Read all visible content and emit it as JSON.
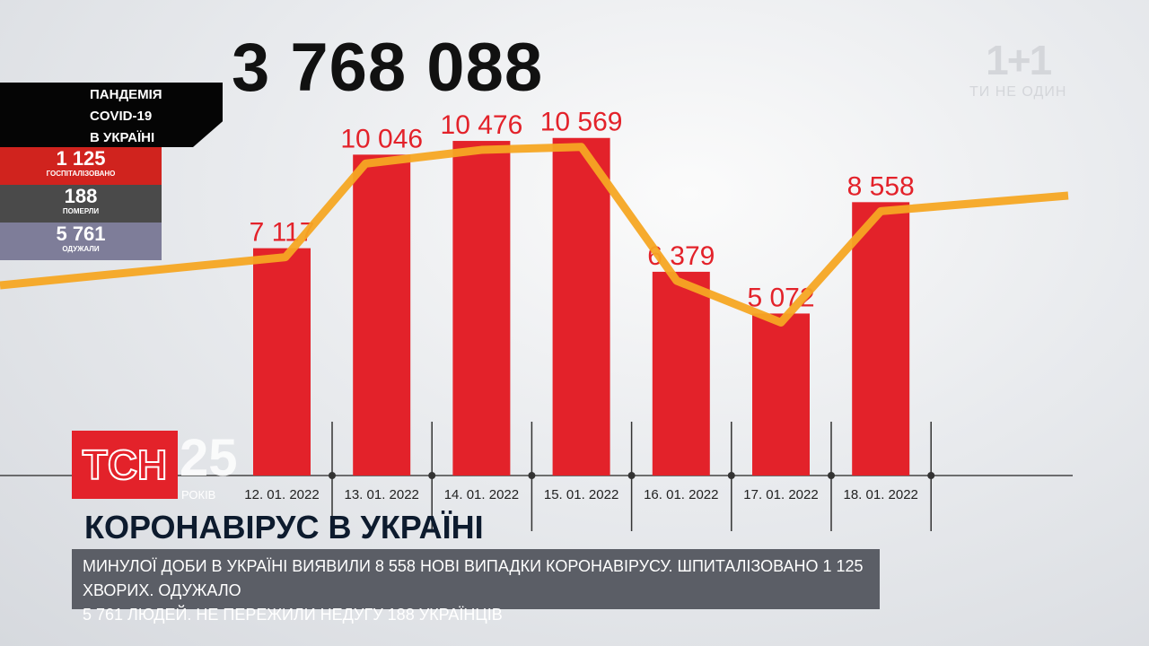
{
  "total_cases": "3 768 088",
  "brand": {
    "logo": "1+1",
    "tagline": "ТИ НЕ ОДИН"
  },
  "panel": {
    "title_lines": [
      "ПАНДЕМІЯ",
      "COVID-19",
      "В УКРАЇНІ"
    ],
    "stats": [
      {
        "value": "1 125",
        "label": "госпіталізовано",
        "color": "#d0231e"
      },
      {
        "value": "188",
        "label": "померли",
        "color": "#4a4a4a"
      },
      {
        "value": "5 761",
        "label": "одужали",
        "color": "#7e7d99"
      }
    ]
  },
  "channel": {
    "logo": "ТСН",
    "anniversary": "25",
    "anniversary_label": "РОКІВ"
  },
  "headline": "КОРОНАВІРУС В УКРАЇНІ",
  "ticker": [
    "МИНУЛОЇ ДОБИ В УКРАЇНІ ВИЯВИЛИ 8 558 НОВІ ВИПАДКИ КОРОНАВІРУСУ. ШПИТАЛІЗОВАНО 1 125 ХВОРИХ. ОДУЖАЛО",
    "5 761 ЛЮДЕЙ. НЕ ПЕРЕЖИЛИ НЕДУГУ 188 УКРАЇНЦІВ"
  ],
  "chart_data": {
    "type": "bar",
    "categories": [
      "12. 01. 2022",
      "13. 01. 2022",
      "14. 01. 2022",
      "15. 01. 2022",
      "16. 01. 2022",
      "17. 01. 2022",
      "18. 01. 2022"
    ],
    "values": [
      7117,
      10046,
      10476,
      10569,
      6379,
      5072,
      8558
    ],
    "value_labels": [
      "7 117",
      "10 046",
      "10 476",
      "10 569",
      "6 379",
      "5 072",
      "8 558"
    ],
    "bar_color": "#e3222a",
    "trend_color": "#f5a623",
    "ylim": [
      0,
      11000
    ],
    "grid": false
  }
}
